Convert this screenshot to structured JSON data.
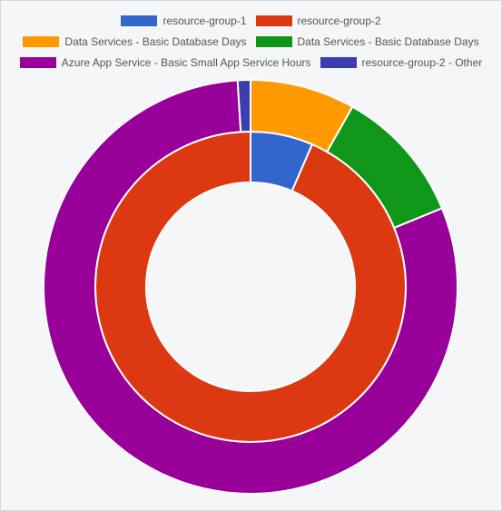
{
  "chart_data": {
    "type": "pie",
    "variant": "nested-doughnut",
    "legend_position": "top",
    "legend": [
      {
        "label": "resource-group-1",
        "color": "#3366cc"
      },
      {
        "label": "resource-group-2",
        "color": "#dc3912"
      },
      {
        "label": "Data Services - Basic Database Days",
        "color": "#ff9900"
      },
      {
        "label": "Data Services - Basic Database Days",
        "color": "#109618"
      },
      {
        "label": "Azure App Service - Basic Small App Service Hours",
        "color": "#990099"
      },
      {
        "label": "resource-group-2 - Other",
        "color": "#3b3eac"
      }
    ],
    "rings": [
      {
        "ring": "inner",
        "slices": [
          {
            "label": "resource-group-1",
            "value": 6.5,
            "color": "#3366cc"
          },
          {
            "label": "resource-group-2",
            "value": 93.5,
            "color": "#dc3912"
          }
        ]
      },
      {
        "ring": "outer",
        "slices": [
          {
            "label": "Data Services - Basic Database Days",
            "value": 8.2,
            "color": "#ff9900"
          },
          {
            "label": "Data Services - Basic Database Days",
            "value": 10.6,
            "color": "#109618"
          },
          {
            "label": "Azure App Service - Basic Small App Service Hours",
            "value": 80.2,
            "color": "#990099"
          },
          {
            "label": "resource-group-2 - Other",
            "value": 1.0,
            "color": "#3b3eac"
          }
        ]
      }
    ]
  }
}
